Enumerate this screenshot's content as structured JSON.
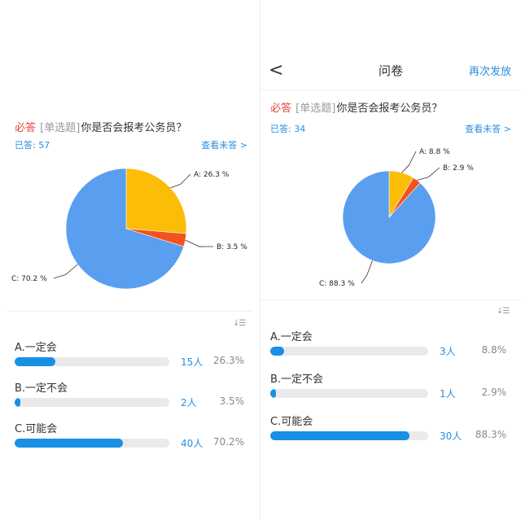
{
  "colors": {
    "A": "#fbbd08",
    "B": "#f4521e",
    "C": "#5a9ef0",
    "bar_fill": "#1890e6",
    "required": "#e2483b",
    "link": "#2a8ee0"
  },
  "icons": {
    "back": "chevron-left-icon",
    "sort": "sort-icon",
    "link_arrow": "chevron-right-icon"
  },
  "left": {
    "question": {
      "required": "必答",
      "type": "[单选题]",
      "text": "你是否会报考公务员？"
    },
    "answered": "已答: 57",
    "view_unanswered": "查看未答 >",
    "options": [
      {
        "label": "A.一定会",
        "count": "15人",
        "percent": "26.3%",
        "fraction": 0.263
      },
      {
        "label": "B.一定不会",
        "count": "2人",
        "percent": "3.5%",
        "fraction": 0.035
      },
      {
        "label": "C.可能会",
        "count": "40人",
        "percent": "70.2%",
        "fraction": 0.702
      }
    ]
  },
  "right": {
    "nav": {
      "back": "<",
      "title": "问卷",
      "action": "再次发放"
    },
    "question": {
      "required": "必答",
      "type": "[单选题]",
      "text": "你是否会报考公务员？"
    },
    "answered": "已答: 34",
    "view_unanswered": "查看未答 >",
    "options": [
      {
        "label": "A.一定会",
        "count": "3人",
        "percent": "8.8%",
        "fraction": 0.088
      },
      {
        "label": "B.一定不会",
        "count": "1人",
        "percent": "2.9%",
        "fraction": 0.029
      },
      {
        "label": "C.可能会",
        "count": "30人",
        "percent": "88.3%",
        "fraction": 0.883
      }
    ]
  },
  "chart_data": [
    {
      "type": "pie",
      "categories": [
        "A",
        "B",
        "C"
      ],
      "labels": [
        "A: 26.3 %",
        "B: 3.5 %",
        "C: 70.2 %"
      ],
      "values": [
        26.3,
        3.5,
        70.2
      ]
    },
    {
      "type": "pie",
      "categories": [
        "A",
        "B",
        "C"
      ],
      "labels": [
        "A: 8.8 %",
        "B: 2.9 %",
        "C: 88.3 %"
      ],
      "values": [
        8.8,
        2.9,
        88.3
      ]
    }
  ]
}
